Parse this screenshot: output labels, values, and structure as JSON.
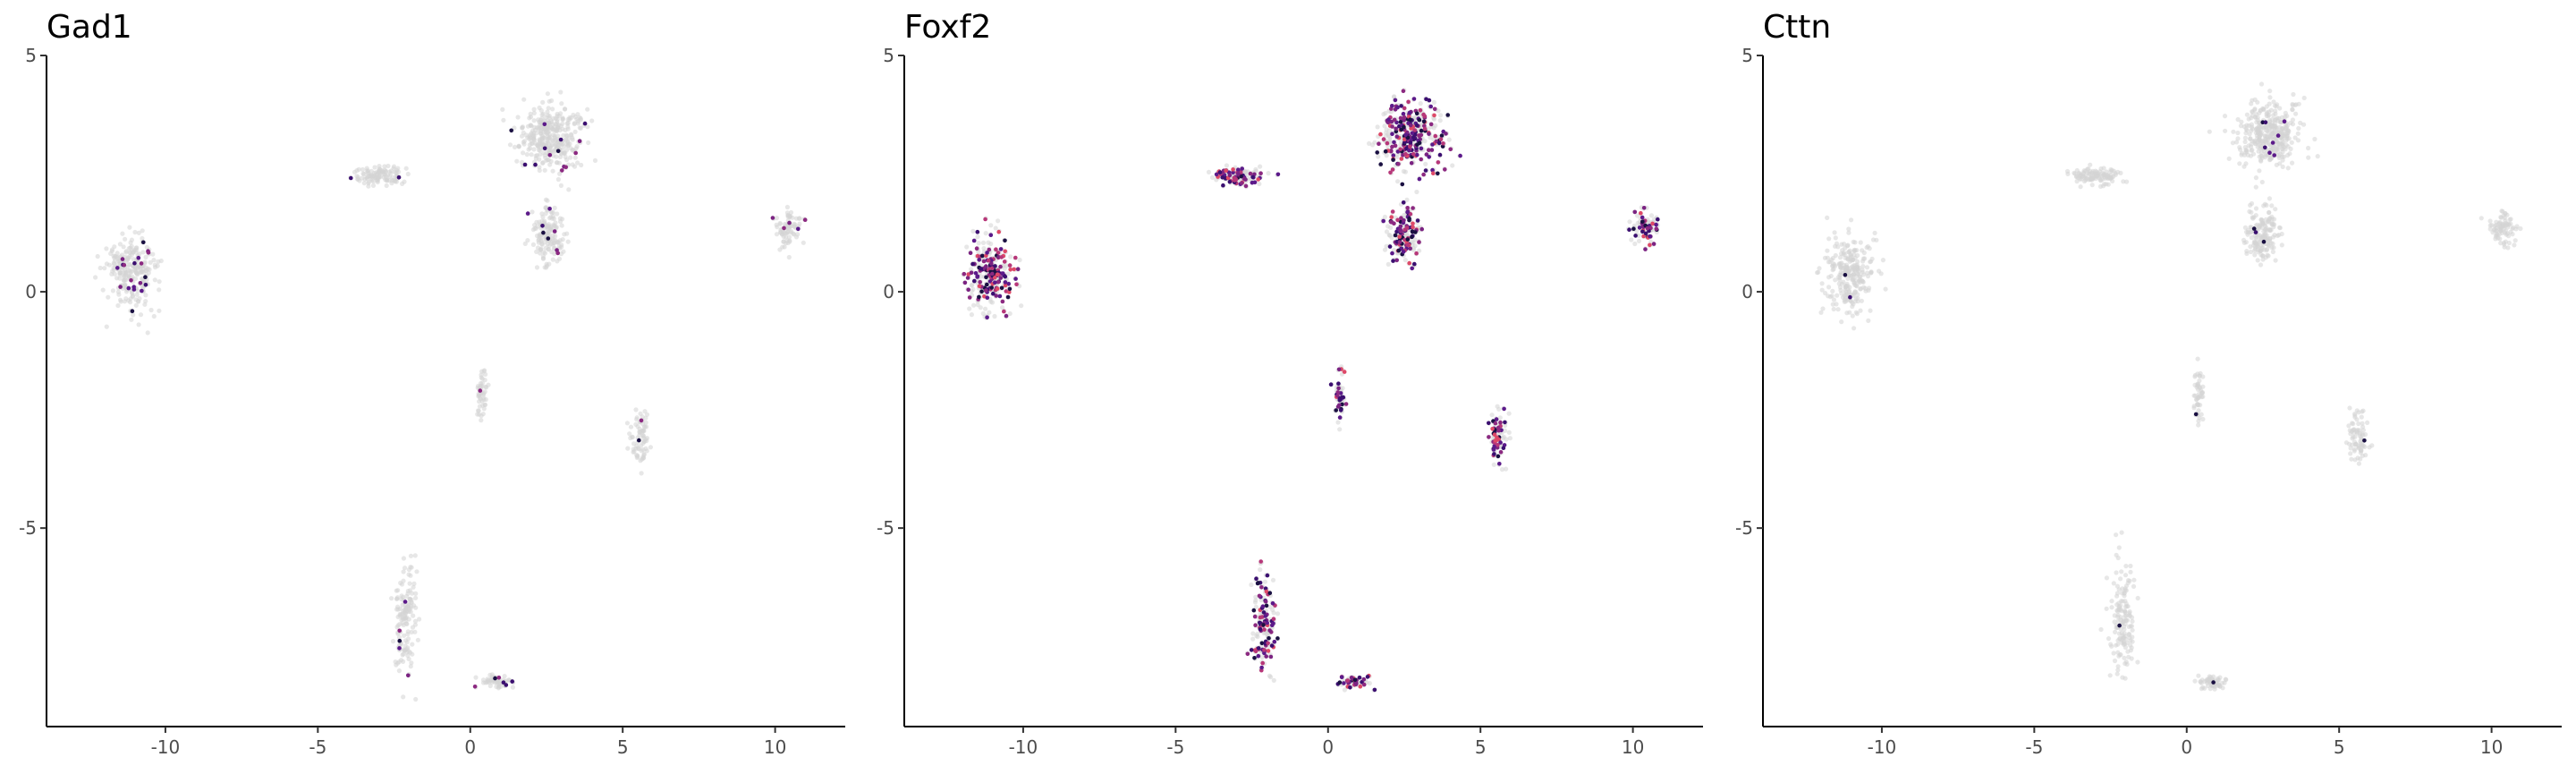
{
  "chart_data": [
    {
      "type": "scatter",
      "title": "Gad1",
      "xlabel": "",
      "ylabel": "",
      "xlim": [
        -13.9,
        12.3
      ],
      "ylim": [
        -9.2,
        5.0
      ],
      "x_ticks": [
        -10,
        -5,
        0,
        5,
        10
      ],
      "y_ticks": [
        -5,
        0,
        5
      ],
      "x_tick_labels": [
        "-10",
        "-5",
        "0",
        "5",
        "10"
      ],
      "y_tick_labels": [
        "-5",
        "0",
        "5"
      ],
      "grid": false,
      "background_color": "#d3d3d3",
      "expressing_density": 0.05,
      "expressing_colors": [
        "#3b0f70",
        "#5c1a8a",
        "#1a1042",
        "#7b2382",
        "#8c2981"
      ]
    },
    {
      "type": "scatter",
      "title": "Foxf2",
      "xlabel": "",
      "ylabel": "",
      "xlim": [
        -13.9,
        12.3
      ],
      "ylim": [
        -9.2,
        5.0
      ],
      "x_ticks": [
        -10,
        -5,
        0,
        5,
        10
      ],
      "y_ticks": [
        -5,
        0,
        5
      ],
      "x_tick_labels": [
        "-10",
        "-5",
        "0",
        "5",
        "10"
      ],
      "y_tick_labels": [
        "-5",
        "0",
        "5"
      ],
      "grid": false,
      "background_color": "#d3d3d3",
      "expressing_density": 0.55,
      "expressing_colors": [
        "#3b0f70",
        "#5c1a8a",
        "#7b2382",
        "#8c2981",
        "#b73779",
        "#de4968",
        "#1a1042"
      ]
    },
    {
      "type": "scatter",
      "title": "Cttn",
      "xlabel": "",
      "ylabel": "",
      "xlim": [
        -13.9,
        12.3
      ],
      "ylim": [
        -9.2,
        5.0
      ],
      "x_ticks": [
        -10,
        -5,
        0,
        5,
        10
      ],
      "y_ticks": [
        -5,
        0,
        5
      ],
      "x_tick_labels": [
        "-10",
        "-5",
        "0",
        "5",
        "10"
      ],
      "y_tick_labels": [
        "-5",
        "0",
        "5"
      ],
      "grid": false,
      "background_color": "#d3d3d3",
      "expressing_density": 0.012,
      "expressing_colors": [
        "#1a1042",
        "#3b0f70",
        "#5c1a8a"
      ]
    }
  ],
  "clusters": [
    {
      "cx": -11.1,
      "cy": 0.4,
      "sx": 0.75,
      "sy": 0.75,
      "n": 260
    },
    {
      "cx": -3.0,
      "cy": 2.45,
      "sx": 0.75,
      "sy": 0.17,
      "n": 110
    },
    {
      "cx": 2.7,
      "cy": 3.3,
      "sx": 1.0,
      "sy": 0.65,
      "n": 360
    },
    {
      "cx": 2.5,
      "cy": 1.2,
      "sx": 0.5,
      "sy": 0.55,
      "n": 160
    },
    {
      "cx": 10.4,
      "cy": 1.35,
      "sx": 0.4,
      "sy": 0.35,
      "n": 80
    },
    {
      "cx": 0.4,
      "cy": -2.2,
      "sx": 0.15,
      "sy": 0.55,
      "n": 50
    },
    {
      "cx": 5.6,
      "cy": -3.1,
      "sx": 0.3,
      "sy": 0.5,
      "n": 75
    },
    {
      "cx": -2.1,
      "cy": -7.0,
      "sx": 0.35,
      "sy": 1.05,
      "n": 150
    },
    {
      "cx": 0.85,
      "cy": -8.25,
      "sx": 0.45,
      "sy": 0.12,
      "n": 55
    }
  ]
}
